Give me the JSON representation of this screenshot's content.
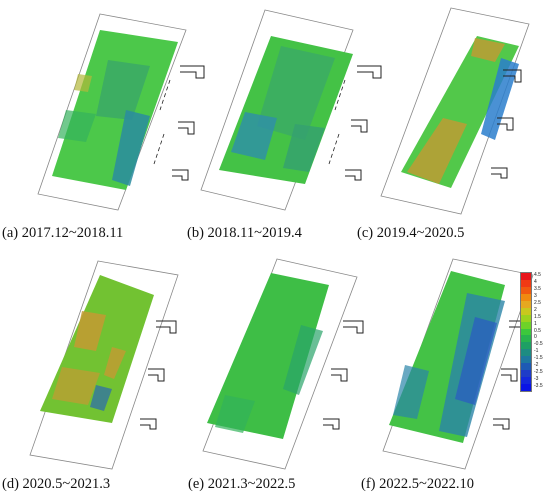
{
  "panels": [
    {
      "id": "a",
      "caption": "(a) 2017.12~2018.11"
    },
    {
      "id": "b",
      "caption": "(b) 2018.11~2019.4"
    },
    {
      "id": "c",
      "caption": "(c) 2019.4~2020.5"
    },
    {
      "id": "d",
      "caption": "(d) 2020.5~2021.3"
    },
    {
      "id": "e",
      "caption": "(e) 2021.3~2022.5"
    },
    {
      "id": "f",
      "caption": "(f) 2022.5~2022.10"
    }
  ],
  "legend": {
    "ticks": [
      "4.5",
      "4",
      "3.5",
      "3",
      "2.5",
      "2",
      "1.5",
      "1",
      "0.5",
      "0",
      "-0.5",
      "-1",
      "-1.5",
      "-2",
      "-2.5",
      "-3",
      "-3.5"
    ],
    "colors": [
      "#e8141a",
      "#f03a14",
      "#f05a10",
      "#f08a10",
      "#e6a820",
      "#c8c81e",
      "#9cd21e",
      "#6ed228",
      "#3cc83c",
      "#28b44e",
      "#1ea064",
      "#1e8c82",
      "#1e78a0",
      "#1e5ab4",
      "#1e3cc8",
      "#1428dc",
      "#0a14e6"
    ]
  }
}
